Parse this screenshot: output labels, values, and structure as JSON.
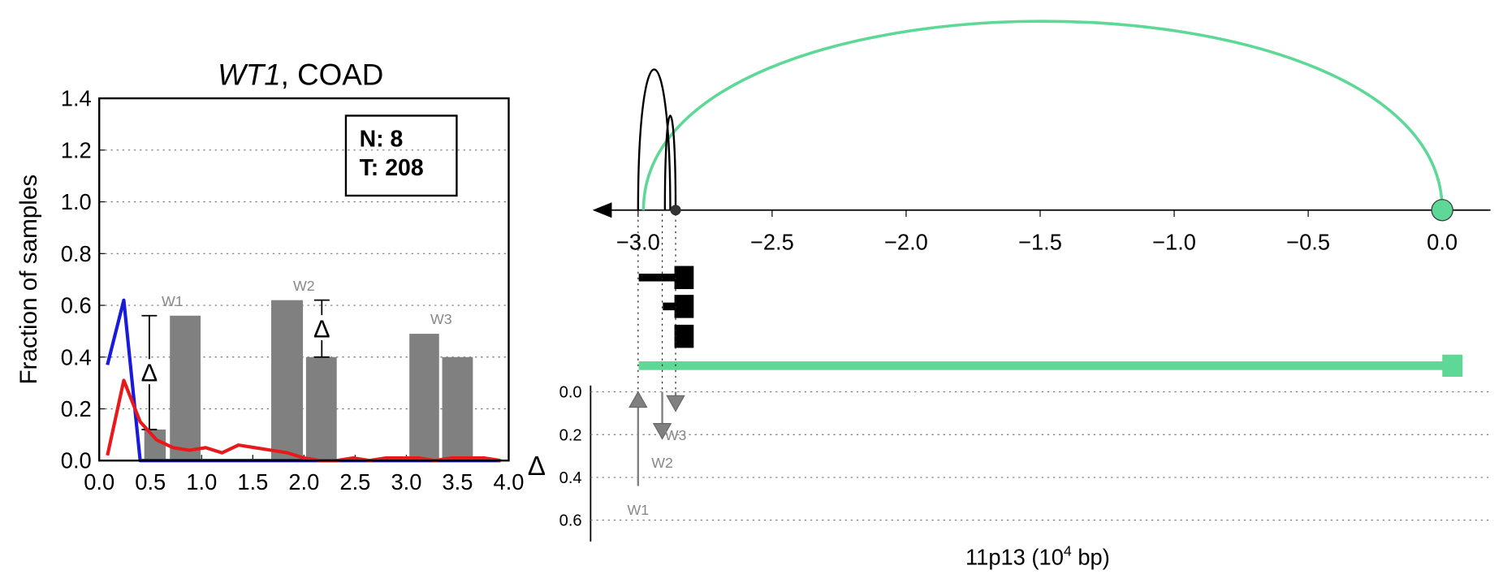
{
  "chart_data": [
    {
      "type": "bar",
      "title_parts": [
        "WT1",
        ", COAD"
      ],
      "ylabel": "Fraction of samples",
      "legend_lines": [
        "N: 8",
        "T: 208"
      ],
      "xlim": [
        0,
        4
      ],
      "ylim": [
        0,
        1.4
      ],
      "xticks": [
        {
          "value": 0,
          "label": "0.0"
        },
        {
          "value": 0.5,
          "label": "0.5"
        },
        {
          "value": 1,
          "label": "1.0"
        },
        {
          "value": 1.5,
          "label": "1.5"
        },
        {
          "value": 2,
          "label": "2.0"
        },
        {
          "value": 2.5,
          "label": "2.5"
        },
        {
          "value": 3,
          "label": "3.0"
        },
        {
          "value": 3.5,
          "label": "3.5"
        },
        {
          "value": 4,
          "label": "4.0"
        }
      ],
      "yticks": [
        {
          "value": 0,
          "label": "0.0"
        },
        {
          "value": 0.2,
          "label": "0.2"
        },
        {
          "value": 0.4,
          "label": "0.4"
        },
        {
          "value": 0.6,
          "label": "0.6"
        },
        {
          "value": 0.8,
          "label": "0.8"
        },
        {
          "value": 1,
          "label": "1.0"
        },
        {
          "value": 1.2,
          "label": "1.2"
        },
        {
          "value": 1.4,
          "label": "1.4"
        }
      ],
      "grid": true,
      "bar_color": "#808080",
      "delta_symbol": "Δ",
      "groups": [
        {
          "label": "W1",
          "edges": [
            [
              0.44,
              0.65
            ],
            [
              0.69,
              0.99
            ]
          ],
          "values": [
            0.12,
            0.56
          ],
          "show_delta": true
        },
        {
          "label": "W2",
          "edges": [
            [
              1.68,
              1.99
            ],
            [
              2.02,
              2.32
            ]
          ],
          "values": [
            0.62,
            0.4
          ],
          "show_delta": true
        },
        {
          "label": "W3",
          "edges": [
            [
              3.03,
              3.32
            ],
            [
              3.35,
              3.65
            ]
          ],
          "values": [
            0.49,
            0.4
          ],
          "show_delta": false
        }
      ],
      "x": [
        0.08,
        0.24,
        0.4,
        0.56,
        0.72,
        0.88,
        1.04,
        1.2,
        1.36,
        1.52,
        1.68,
        1.84,
        2.0,
        2.16,
        2.32,
        2.48,
        2.64,
        2.8,
        2.96,
        3.12,
        3.28,
        3.44,
        3.6,
        3.76,
        3.92
      ],
      "series": [
        {
          "color": "#1a1adc",
          "values": [
            0.37,
            0.62,
            0.0,
            0,
            0,
            0,
            0,
            0,
            0,
            0,
            0,
            0,
            0,
            0,
            0,
            0,
            0,
            0,
            0,
            0,
            0,
            0,
            0,
            0,
            0
          ]
        },
        {
          "color": "#e8191a",
          "values": [
            0.02,
            0.31,
            0.15,
            0.08,
            0.05,
            0.04,
            0.05,
            0.03,
            0.06,
            0.05,
            0.04,
            0.03,
            0.01,
            0.0,
            0.0,
            0.01,
            0.0,
            0.01,
            0.01,
            0.01,
            0.0,
            0.01,
            0.01,
            0.01,
            0.0
          ]
        }
      ]
    },
    {
      "type": "arc",
      "xlim": [
        -3.17,
        0.18
      ],
      "xticks": [
        {
          "value": -3,
          "label": "−3.0"
        },
        {
          "value": -2.5,
          "label": "−2.5"
        },
        {
          "value": -2,
          "label": "−2.0"
        },
        {
          "value": -1.5,
          "label": "−1.5"
        },
        {
          "value": -1,
          "label": "−1.0"
        },
        {
          "value": -0.5,
          "label": "−0.5"
        },
        {
          "value": 0,
          "label": "0.0"
        }
      ],
      "arcs": [
        {
          "from": -2.98,
          "to": 0.0,
          "color": "#5dd896"
        },
        {
          "from": -3.0,
          "to": -2.88,
          "color": "#000000"
        },
        {
          "from": -2.9,
          "to": -2.86,
          "color": "#000000"
        }
      ],
      "points": [
        {
          "x": 0.0,
          "color": "#5dd896"
        },
        {
          "x": -2.86,
          "color": "#333333"
        }
      ]
    },
    {
      "type": "arrow",
      "ylabel": "Δ",
      "xlabel_parts": [
        "11p13 (10",
        "4",
        " bp)"
      ],
      "ylim": [
        -0.03,
        0.7
      ],
      "yticks": [
        {
          "value": 0,
          "label": "0.0"
        },
        {
          "value": 0.2,
          "label": "0.2"
        },
        {
          "value": 0.4,
          "label": "0.4"
        },
        {
          "value": 0.6,
          "label": "0.6"
        }
      ],
      "grid": true,
      "color": "#808080",
      "labels": [
        "W1",
        "W2",
        "W3"
      ],
      "x": [
        -3.0,
        -2.91,
        -2.86
      ],
      "values": [
        0.44,
        0.22,
        0.09
      ],
      "directions": [
        "up",
        "down",
        "down"
      ]
    }
  ]
}
